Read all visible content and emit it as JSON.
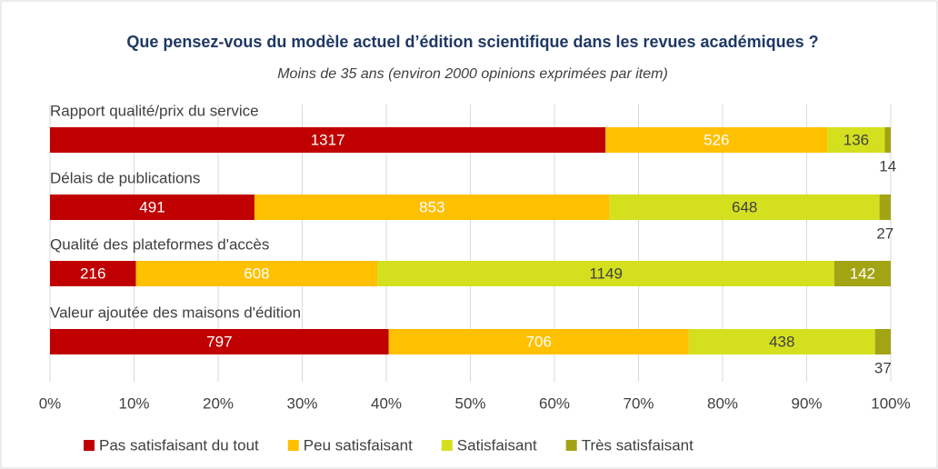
{
  "chart_data": {
    "type": "bar",
    "orientation": "horizontal",
    "stacking": "percent",
    "title": "Que pensez-vous du modèle actuel d’édition scientifique dans les revues académiques ?",
    "subtitle": "Moins de 35 ans (environ 2000 opinions exprimées par item)",
    "categories": [
      "Rapport qualité/prix du service",
      "Délais de publications",
      "Qualité des plateformes d'accès",
      "Valeur ajoutée des maisons d'édition"
    ],
    "series": [
      {
        "name": "Pas satisfaisant du tout",
        "color": "#c00000",
        "values": [
          1317,
          491,
          216,
          797
        ]
      },
      {
        "name": "Peu satisfaisant",
        "color": "#ffc000",
        "values": [
          526,
          853,
          608,
          706
        ]
      },
      {
        "name": "Satisfaisant",
        "color": "#d4e01e",
        "values": [
          136,
          648,
          1149,
          438
        ]
      },
      {
        "name": "Très satisfaisant",
        "color": "#a3a414",
        "values": [
          14,
          27,
          142,
          37
        ]
      }
    ],
    "xlim": [
      0,
      100
    ],
    "xticks": [
      {
        "value": 0,
        "label": "0%"
      },
      {
        "value": 10,
        "label": "10%"
      },
      {
        "value": 20,
        "label": "20%"
      },
      {
        "value": 30,
        "label": "30%"
      },
      {
        "value": 40,
        "label": "40%"
      },
      {
        "value": 50,
        "label": "50%"
      },
      {
        "value": 60,
        "label": "60%"
      },
      {
        "value": 70,
        "label": "70%"
      },
      {
        "value": 80,
        "label": "80%"
      },
      {
        "value": 90,
        "label": "90%"
      },
      {
        "value": 100,
        "label": "100%"
      }
    ],
    "grid": true,
    "legend": "bottom"
  }
}
